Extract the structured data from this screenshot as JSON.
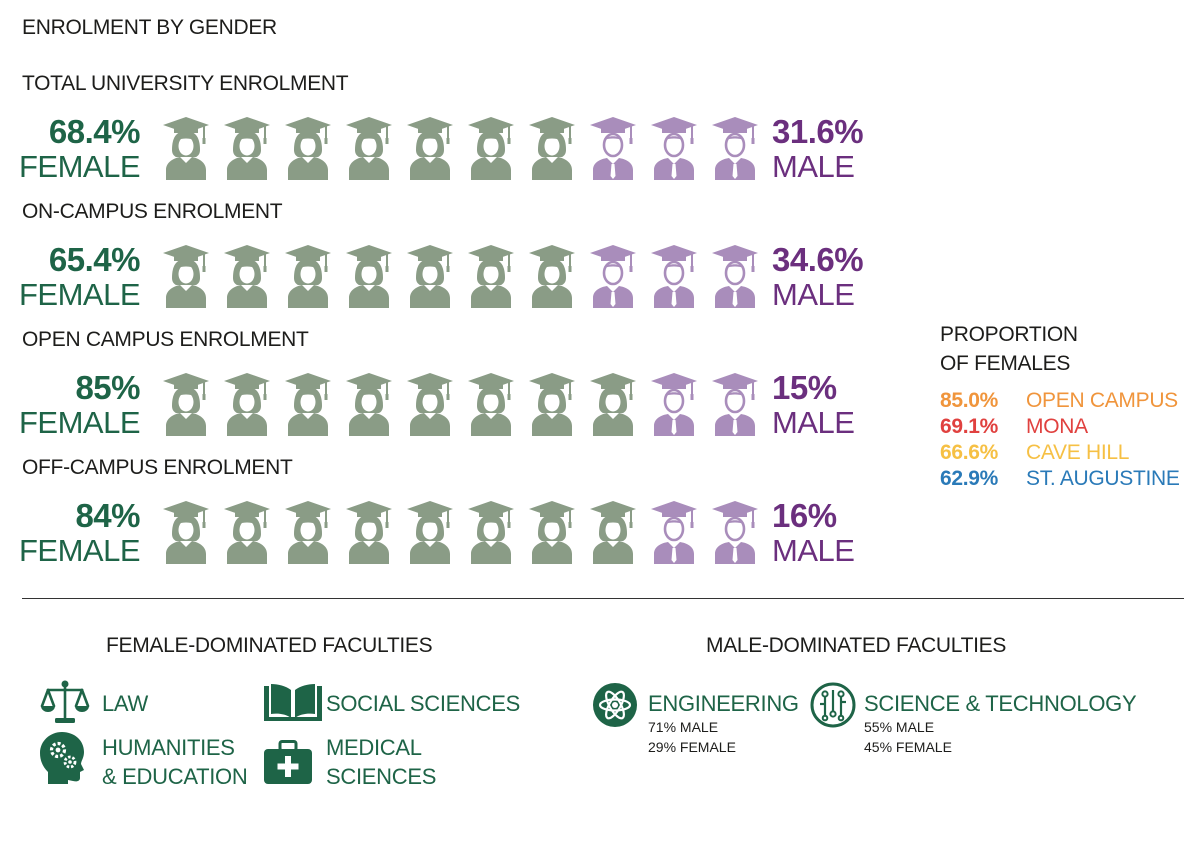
{
  "title": "ENROLMENT BY GENDER",
  "colors": {
    "female": "#1e6447",
    "female_icon": "#8a9c86",
    "male": "#6b2f7e",
    "male_icon": "#a98dbb",
    "faculty": "#1e6447"
  },
  "rows": [
    {
      "title": "TOTAL UNIVERSITY ENROLMENT",
      "female_pct": "68.4%",
      "female_label": "FEMALE",
      "male_pct": "31.6%",
      "male_label": "MALE",
      "female_icons": 7,
      "male_icons": 3
    },
    {
      "title": "ON-CAMPUS ENROLMENT",
      "female_pct": "65.4%",
      "female_label": "FEMALE",
      "male_pct": "34.6%",
      "male_label": "MALE",
      "female_icons": 7,
      "male_icons": 3
    },
    {
      "title": "OPEN CAMPUS ENROLMENT",
      "female_pct": "85%",
      "female_label": "FEMALE",
      "male_pct": "15%",
      "male_label": "MALE",
      "female_icons": 8,
      "male_icons": 2
    },
    {
      "title": "OFF-CAMPUS ENROLMENT",
      "female_pct": "84%",
      "female_label": "FEMALE",
      "male_pct": "16%",
      "male_label": "MALE",
      "female_icons": 8,
      "male_icons": 2
    }
  ],
  "proportion": {
    "title_line1": "PROPORTION",
    "title_line2": "OF FEMALES",
    "items": [
      {
        "value": "85.0%",
        "name": "OPEN CAMPUS",
        "color": "#f0953c"
      },
      {
        "value": "69.1%",
        "name": "MONA",
        "color": "#e0413f"
      },
      {
        "value": "66.6%",
        "name": "CAVE HILL",
        "color": "#f6c044"
      },
      {
        "value": "62.9%",
        "name": "ST. AUGUSTINE",
        "color": "#2a7ab8"
      }
    ]
  },
  "female_faculties": {
    "heading": "FEMALE-DOMINATED FACULTIES",
    "law": "LAW",
    "social_sciences": "SOCIAL SCIENCES",
    "humanities_line1": "HUMANITIES",
    "humanities_line2": "& EDUCATION",
    "medical_line1": "MEDICAL",
    "medical_line2": "SCIENCES"
  },
  "male_faculties": {
    "heading": "MALE-DOMINATED FACULTIES",
    "engineering": {
      "name": "ENGINEERING",
      "male": "71% MALE",
      "female": "29% FEMALE"
    },
    "science": {
      "name": "SCIENCE & TECHNOLOGY",
      "male": "55% MALE",
      "female": "45% FEMALE"
    }
  },
  "chart_data": {
    "type": "table",
    "title": "ENROLMENT BY GENDER",
    "categories": [
      "TOTAL UNIVERSITY ENROLMENT",
      "ON-CAMPUS ENROLMENT",
      "OPEN CAMPUS ENROLMENT",
      "OFF-CAMPUS ENROLMENT"
    ],
    "series": [
      {
        "name": "FEMALE",
        "values": [
          68.4,
          65.4,
          85,
          84
        ]
      },
      {
        "name": "MALE",
        "values": [
          31.6,
          34.6,
          15,
          16
        ]
      }
    ],
    "proportion_of_females": {
      "categories": [
        "OPEN CAMPUS",
        "MONA",
        "CAVE HILL",
        "ST. AUGUSTINE"
      ],
      "values": [
        85.0,
        69.1,
        66.6,
        62.9
      ]
    }
  }
}
